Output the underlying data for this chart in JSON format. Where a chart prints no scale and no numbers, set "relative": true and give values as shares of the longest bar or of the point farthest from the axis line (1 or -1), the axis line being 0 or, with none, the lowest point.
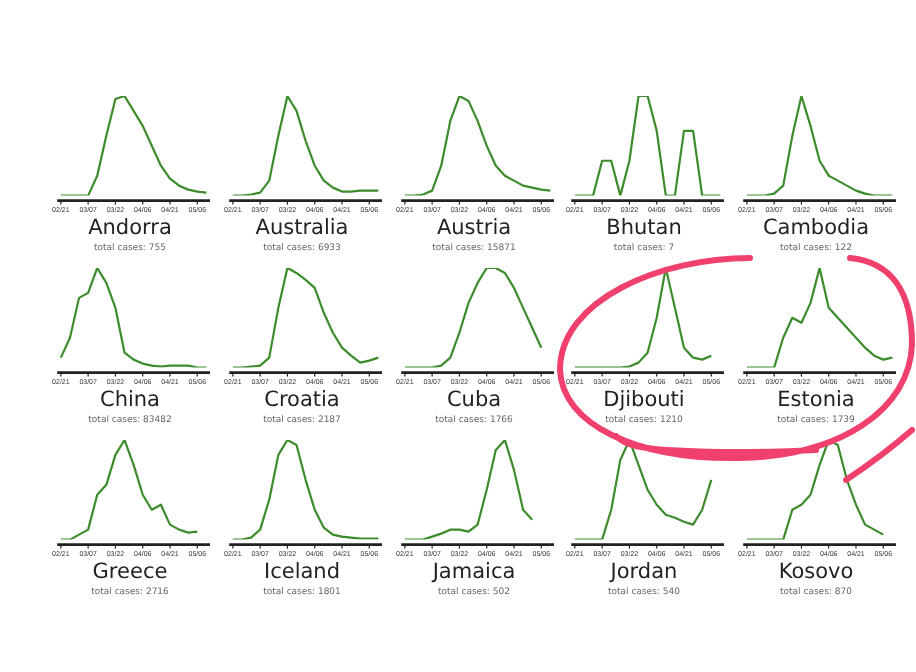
{
  "chart_data": [
    {
      "type": "line",
      "title": "Andorra",
      "subtitle": "total cases: 755",
      "relative": true,
      "x": [
        "--02-21",
        "--02-26",
        "--03-02",
        "--03-07",
        "--03-12",
        "--03-17",
        "--03-22",
        "--03-27",
        "--04-01",
        "--04-06",
        "--04-11",
        "--04-16",
        "--04-21",
        "--04-26",
        "--05-01",
        "--05-06",
        "--05-11"
      ],
      "xlim": [
        "--02-19",
        "--05-13"
      ],
      "xticks": [
        {
          "value": "--02-21",
          "label": "02/21"
        },
        {
          "value": "--03-07",
          "label": "03/07"
        },
        {
          "value": "--03-22",
          "label": "03/22"
        },
        {
          "value": "--04-06",
          "label": "04/06"
        },
        {
          "value": "--04-21",
          "label": "04/21"
        },
        {
          "value": "--05-06",
          "label": "05/06"
        }
      ],
      "grid": false,
      "legend": false,
      "series": [
        {
          "color": "#3c8c2c",
          "values": [
            0,
            0,
            0,
            0,
            0.2,
            0.6,
            0.97,
            1,
            0.85,
            0.7,
            0.5,
            0.3,
            0.17,
            0.1,
            0.06,
            0.04,
            0.03
          ]
        }
      ]
    },
    {
      "type": "line",
      "title": "Australia",
      "subtitle": "total cases: 6933",
      "relative": true,
      "x": [
        "--02-21",
        "--02-26",
        "--03-02",
        "--03-07",
        "--03-12",
        "--03-17",
        "--03-22",
        "--03-27",
        "--04-01",
        "--04-06",
        "--04-11",
        "--04-16",
        "--04-21",
        "--04-26",
        "--05-01",
        "--05-06",
        "--05-11"
      ],
      "xlim": [
        "--02-19",
        "--05-13"
      ],
      "xticks": [
        {
          "value": "--02-21",
          "label": "02/21"
        },
        {
          "value": "--03-07",
          "label": "03/07"
        },
        {
          "value": "--03-22",
          "label": "03/22"
        },
        {
          "value": "--04-06",
          "label": "04/06"
        },
        {
          "value": "--04-21",
          "label": "04/21"
        },
        {
          "value": "--05-06",
          "label": "05/06"
        }
      ],
      "grid": false,
      "legend": false,
      "series": [
        {
          "color": "#3c8c2c",
          "values": [
            0,
            0,
            0.01,
            0.03,
            0.15,
            0.6,
            1,
            0.85,
            0.55,
            0.3,
            0.15,
            0.08,
            0.04,
            0.04,
            0.05,
            0.05,
            0.05
          ]
        }
      ]
    },
    {
      "type": "line",
      "title": "Austria",
      "subtitle": "total cases: 15871",
      "relative": true,
      "x": [
        "--02-21",
        "--02-26",
        "--03-02",
        "--03-07",
        "--03-12",
        "--03-17",
        "--03-22",
        "--03-27",
        "--04-01",
        "--04-06",
        "--04-11",
        "--04-16",
        "--04-21",
        "--04-26",
        "--05-01",
        "--05-06",
        "--05-11"
      ],
      "xlim": [
        "--02-19",
        "--05-13"
      ],
      "xticks": [
        {
          "value": "--02-21",
          "label": "02/21"
        },
        {
          "value": "--03-07",
          "label": "03/07"
        },
        {
          "value": "--03-22",
          "label": "03/22"
        },
        {
          "value": "--04-06",
          "label": "04/06"
        },
        {
          "value": "--04-21",
          "label": "04/21"
        },
        {
          "value": "--05-06",
          "label": "05/06"
        }
      ],
      "grid": false,
      "legend": false,
      "series": [
        {
          "color": "#3c8c2c",
          "values": [
            0,
            0,
            0.01,
            0.05,
            0.3,
            0.75,
            1,
            0.95,
            0.75,
            0.5,
            0.3,
            0.2,
            0.15,
            0.1,
            0.08,
            0.06,
            0.05
          ]
        }
      ]
    },
    {
      "type": "line",
      "title": "Bhutan",
      "subtitle": "total cases: 7",
      "relative": true,
      "x": [
        "--02-21",
        "--02-26",
        "--03-02",
        "--03-07",
        "--03-12",
        "--03-17",
        "--03-22",
        "--03-27",
        "--04-01",
        "--04-06",
        "--04-11",
        "--04-16",
        "--04-21",
        "--04-26",
        "--05-01",
        "--05-06",
        "--05-11"
      ],
      "xlim": [
        "--02-19",
        "--05-13"
      ],
      "xticks": [
        {
          "value": "--02-21",
          "label": "02/21"
        },
        {
          "value": "--03-07",
          "label": "03/07"
        },
        {
          "value": "--03-22",
          "label": "03/22"
        },
        {
          "value": "--04-06",
          "label": "04/06"
        },
        {
          "value": "--04-21",
          "label": "04/21"
        },
        {
          "value": "--05-06",
          "label": "05/06"
        }
      ],
      "grid": false,
      "legend": false,
      "series": [
        {
          "color": "#3c8c2c",
          "values": [
            0,
            0,
            0,
            0.35,
            0.35,
            0,
            0.35,
            1,
            1,
            0.65,
            0,
            0,
            0.65,
            0.65,
            0,
            0,
            0
          ]
        }
      ]
    },
    {
      "type": "line",
      "title": "Cambodia",
      "subtitle": "total cases: 122",
      "relative": true,
      "x": [
        "--02-21",
        "--02-26",
        "--03-02",
        "--03-07",
        "--03-12",
        "--03-17",
        "--03-22",
        "--03-27",
        "--04-01",
        "--04-06",
        "--04-11",
        "--04-16",
        "--04-21",
        "--04-26",
        "--05-01",
        "--05-06",
        "--05-11"
      ],
      "xlim": [
        "--02-19",
        "--05-13"
      ],
      "xticks": [
        {
          "value": "--02-21",
          "label": "02/21"
        },
        {
          "value": "--03-07",
          "label": "03/07"
        },
        {
          "value": "--03-22",
          "label": "03/22"
        },
        {
          "value": "--04-06",
          "label": "04/06"
        },
        {
          "value": "--04-21",
          "label": "04/21"
        },
        {
          "value": "--05-06",
          "label": "05/06"
        }
      ],
      "grid": false,
      "legend": false,
      "series": [
        {
          "color": "#3c8c2c",
          "values": [
            0,
            0,
            0,
            0.02,
            0.1,
            0.6,
            1,
            0.7,
            0.35,
            0.2,
            0.15,
            0.1,
            0.05,
            0.02,
            0,
            0,
            0
          ]
        }
      ]
    },
    {
      "type": "line",
      "title": "China",
      "subtitle": "total cases: 83482",
      "relative": true,
      "x": [
        "--02-21",
        "--02-26",
        "--03-02",
        "--03-07",
        "--03-12",
        "--03-17",
        "--03-22",
        "--03-27",
        "--04-01",
        "--04-06",
        "--04-11",
        "--04-16",
        "--04-21",
        "--04-26",
        "--05-01",
        "--05-06",
        "--05-11"
      ],
      "xlim": [
        "--02-19",
        "--05-13"
      ],
      "xticks": [
        {
          "value": "--02-21",
          "label": "02/21"
        },
        {
          "value": "--03-07",
          "label": "03/07"
        },
        {
          "value": "--03-22",
          "label": "03/22"
        },
        {
          "value": "--04-06",
          "label": "04/06"
        },
        {
          "value": "--04-21",
          "label": "04/21"
        },
        {
          "value": "--05-06",
          "label": "05/06"
        }
      ],
      "grid": false,
      "legend": false,
      "series": [
        {
          "color": "#3c8c2c",
          "values": [
            0.1,
            0.3,
            0.7,
            0.75,
            1,
            0.85,
            0.6,
            0.15,
            0.08,
            0.04,
            0.02,
            0.01,
            0.02,
            0.02,
            0.02,
            0,
            0
          ]
        }
      ]
    },
    {
      "type": "line",
      "title": "Croatia",
      "subtitle": "total cases: 2187",
      "relative": true,
      "x": [
        "--02-21",
        "--02-26",
        "--03-02",
        "--03-07",
        "--03-12",
        "--03-17",
        "--03-22",
        "--03-27",
        "--04-01",
        "--04-06",
        "--04-11",
        "--04-16",
        "--04-21",
        "--04-26",
        "--05-01",
        "--05-06",
        "--05-11"
      ],
      "xlim": [
        "--02-19",
        "--05-13"
      ],
      "xticks": [
        {
          "value": "--02-21",
          "label": "02/21"
        },
        {
          "value": "--03-07",
          "label": "03/07"
        },
        {
          "value": "--03-22",
          "label": "03/22"
        },
        {
          "value": "--04-06",
          "label": "04/06"
        },
        {
          "value": "--04-21",
          "label": "04/21"
        },
        {
          "value": "--05-06",
          "label": "05/06"
        }
      ],
      "grid": false,
      "legend": false,
      "series": [
        {
          "color": "#3c8c2c",
          "values": [
            0,
            0,
            0.01,
            0.02,
            0.1,
            0.6,
            1,
            0.95,
            0.88,
            0.8,
            0.55,
            0.35,
            0.2,
            0.12,
            0.05,
            0.07,
            0.1
          ]
        }
      ]
    },
    {
      "type": "line",
      "title": "Cuba",
      "subtitle": "total cases: 1766",
      "relative": true,
      "x": [
        "--02-21",
        "--02-26",
        "--03-02",
        "--03-07",
        "--03-12",
        "--03-17",
        "--03-22",
        "--03-27",
        "--04-01",
        "--04-06",
        "--04-11",
        "--04-16",
        "--04-21",
        "--04-26",
        "--05-01",
        "--05-06"
      ],
      "xlim": [
        "--02-19",
        "--05-13"
      ],
      "xticks": [
        {
          "value": "--02-21",
          "label": "02/21"
        },
        {
          "value": "--03-07",
          "label": "03/07"
        },
        {
          "value": "--03-22",
          "label": "03/22"
        },
        {
          "value": "--04-06",
          "label": "04/06"
        },
        {
          "value": "--04-21",
          "label": "04/21"
        },
        {
          "value": "--05-06",
          "label": "05/06"
        }
      ],
      "grid": false,
      "legend": false,
      "series": [
        {
          "color": "#3c8c2c",
          "values": [
            0,
            0,
            0,
            0,
            0.02,
            0.1,
            0.35,
            0.65,
            0.85,
            1,
            1,
            0.95,
            0.8,
            0.6,
            0.4,
            0.2
          ]
        }
      ]
    },
    {
      "type": "line",
      "title": "Djibouti",
      "subtitle": "total cases: 1210",
      "relative": true,
      "x": [
        "--02-21",
        "--02-26",
        "--03-02",
        "--03-07",
        "--03-12",
        "--03-17",
        "--03-22",
        "--03-27",
        "--04-01",
        "--04-06",
        "--04-11",
        "--04-16",
        "--04-21",
        "--04-26",
        "--05-01",
        "--05-06"
      ],
      "xlim": [
        "--02-19",
        "--05-13"
      ],
      "xticks": [
        {
          "value": "--02-21",
          "label": "02/21"
        },
        {
          "value": "--03-07",
          "label": "03/07"
        },
        {
          "value": "--03-22",
          "label": "03/22"
        },
        {
          "value": "--04-06",
          "label": "04/06"
        },
        {
          "value": "--04-21",
          "label": "04/21"
        },
        {
          "value": "--05-06",
          "label": "05/06"
        }
      ],
      "grid": false,
      "legend": false,
      "series": [
        {
          "color": "#3c8c2c",
          "values": [
            0,
            0,
            0,
            0,
            0,
            0,
            0.01,
            0.05,
            0.15,
            0.5,
            1,
            0.6,
            0.2,
            0.1,
            0.08,
            0.12
          ]
        }
      ]
    },
    {
      "type": "line",
      "title": "Estonia",
      "subtitle": "total cases: 1739",
      "relative": true,
      "x": [
        "--02-21",
        "--02-26",
        "--03-02",
        "--03-07",
        "--03-12",
        "--03-17",
        "--03-22",
        "--03-27",
        "--04-01",
        "--04-06",
        "--04-11",
        "--04-16",
        "--04-21",
        "--04-26",
        "--05-01",
        "--05-06",
        "--05-11"
      ],
      "xlim": [
        "--02-19",
        "--05-13"
      ],
      "xticks": [
        {
          "value": "--02-21",
          "label": "02/21"
        },
        {
          "value": "--03-07",
          "label": "03/07"
        },
        {
          "value": "--03-22",
          "label": "03/22"
        },
        {
          "value": "--04-06",
          "label": "04/06"
        },
        {
          "value": "--04-21",
          "label": "04/21"
        },
        {
          "value": "--05-06",
          "label": "05/06"
        }
      ],
      "grid": false,
      "legend": false,
      "series": [
        {
          "color": "#3c8c2c",
          "values": [
            0,
            0,
            0,
            0,
            0.3,
            0.5,
            0.45,
            0.65,
            1,
            0.6,
            0.5,
            0.4,
            0.3,
            0.2,
            0.12,
            0.08,
            0.1
          ]
        }
      ]
    },
    {
      "type": "line",
      "title": "Greece",
      "subtitle": "total cases: 2716",
      "relative": true,
      "x": [
        "--02-21",
        "--02-26",
        "--03-02",
        "--03-07",
        "--03-12",
        "--03-17",
        "--03-22",
        "--03-27",
        "--04-01",
        "--04-06",
        "--04-11",
        "--04-16",
        "--04-21",
        "--04-26",
        "--05-01",
        "--05-06"
      ],
      "xlim": [
        "--02-19",
        "--05-13"
      ],
      "xticks": [
        {
          "value": "--02-21",
          "label": "02/21"
        },
        {
          "value": "--03-07",
          "label": "03/07"
        },
        {
          "value": "--03-22",
          "label": "03/22"
        },
        {
          "value": "--04-06",
          "label": "04/06"
        },
        {
          "value": "--04-21",
          "label": "04/21"
        },
        {
          "value": "--05-06",
          "label": "05/06"
        }
      ],
      "grid": false,
      "legend": false,
      "series": [
        {
          "color": "#3c8c2c",
          "values": [
            0,
            0,
            0.05,
            0.1,
            0.45,
            0.55,
            0.85,
            1,
            0.75,
            0.45,
            0.3,
            0.35,
            0.15,
            0.1,
            0.07,
            0.08
          ]
        }
      ]
    },
    {
      "type": "line",
      "title": "Iceland",
      "subtitle": "total cases: 1801",
      "relative": true,
      "x": [
        "--02-21",
        "--02-26",
        "--03-02",
        "--03-07",
        "--03-12",
        "--03-17",
        "--03-22",
        "--03-27",
        "--04-01",
        "--04-06",
        "--04-11",
        "--04-16",
        "--04-21",
        "--04-26",
        "--05-01",
        "--05-06",
        "--05-11"
      ],
      "xlim": [
        "--02-19",
        "--05-13"
      ],
      "xticks": [
        {
          "value": "--02-21",
          "label": "02/21"
        },
        {
          "value": "--03-07",
          "label": "03/07"
        },
        {
          "value": "--03-22",
          "label": "03/22"
        },
        {
          "value": "--04-06",
          "label": "04/06"
        },
        {
          "value": "--04-21",
          "label": "04/21"
        },
        {
          "value": "--05-06",
          "label": "05/06"
        }
      ],
      "grid": false,
      "legend": false,
      "series": [
        {
          "color": "#3c8c2c",
          "values": [
            0,
            0,
            0.02,
            0.1,
            0.4,
            0.85,
            1,
            0.95,
            0.6,
            0.3,
            0.12,
            0.05,
            0.03,
            0.02,
            0.01,
            0.01,
            0.01
          ]
        }
      ]
    },
    {
      "type": "line",
      "title": "Jamaica",
      "subtitle": "total cases: 502",
      "relative": true,
      "x": [
        "--02-21",
        "--02-26",
        "--03-02",
        "--03-07",
        "--03-12",
        "--03-17",
        "--03-22",
        "--03-27",
        "--04-01",
        "--04-06",
        "--04-11",
        "--04-16",
        "--04-21",
        "--04-26",
        "--05-01"
      ],
      "xlim": [
        "--02-19",
        "--05-13"
      ],
      "xticks": [
        {
          "value": "--02-21",
          "label": "02/21"
        },
        {
          "value": "--03-07",
          "label": "03/07"
        },
        {
          "value": "--03-22",
          "label": "03/22"
        },
        {
          "value": "--04-06",
          "label": "04/06"
        },
        {
          "value": "--04-21",
          "label": "04/21"
        },
        {
          "value": "--05-06",
          "label": "05/06"
        }
      ],
      "grid": false,
      "legend": false,
      "series": [
        {
          "color": "#3c8c2c",
          "values": [
            0,
            0,
            0,
            0.03,
            0.06,
            0.1,
            0.1,
            0.08,
            0.15,
            0.5,
            0.9,
            1,
            0.7,
            0.3,
            0.2
          ]
        }
      ]
    },
    {
      "type": "line",
      "title": "Jordan",
      "subtitle": "total cases: 540",
      "relative": true,
      "x": [
        "--02-21",
        "--02-26",
        "--03-02",
        "--03-07",
        "--03-12",
        "--03-17",
        "--03-22",
        "--03-27",
        "--04-01",
        "--04-06",
        "--04-11",
        "--04-16",
        "--04-21",
        "--04-26",
        "--05-01",
        "--05-06"
      ],
      "xlim": [
        "--02-19",
        "--05-13"
      ],
      "xticks": [
        {
          "value": "--02-21",
          "label": "02/21"
        },
        {
          "value": "--03-07",
          "label": "03/07"
        },
        {
          "value": "--03-22",
          "label": "03/22"
        },
        {
          "value": "--04-06",
          "label": "04/06"
        },
        {
          "value": "--04-21",
          "label": "04/21"
        },
        {
          "value": "--05-06",
          "label": "05/06"
        }
      ],
      "grid": false,
      "legend": false,
      "series": [
        {
          "color": "#3c8c2c",
          "values": [
            0,
            0,
            0,
            0,
            0.3,
            0.8,
            1,
            0.75,
            0.5,
            0.35,
            0.25,
            0.22,
            0.18,
            0.15,
            0.3,
            0.6
          ]
        }
      ]
    },
    {
      "type": "line",
      "title": "Kosovo",
      "subtitle": "total cases: 870",
      "relative": true,
      "x": [
        "--02-21",
        "--02-26",
        "--03-02",
        "--03-07",
        "--03-12",
        "--03-17",
        "--03-22",
        "--03-27",
        "--04-01",
        "--04-06",
        "--04-11",
        "--04-16",
        "--04-21",
        "--04-26",
        "--05-01",
        "--05-06"
      ],
      "xlim": [
        "--02-19",
        "--05-13"
      ],
      "xticks": [
        {
          "value": "--02-21",
          "label": "02/21"
        },
        {
          "value": "--03-07",
          "label": "03/07"
        },
        {
          "value": "--03-22",
          "label": "03/22"
        },
        {
          "value": "--04-06",
          "label": "04/06"
        },
        {
          "value": "--04-21",
          "label": "04/21"
        },
        {
          "value": "--05-06",
          "label": "05/06"
        }
      ],
      "grid": false,
      "legend": false,
      "series": [
        {
          "color": "#3c8c2c",
          "values": [
            0,
            0,
            0,
            0,
            0,
            0.3,
            0.35,
            0.45,
            0.75,
            1,
            0.95,
            0.6,
            0.35,
            0.15,
            0.1,
            0.05
          ]
        }
      ]
    }
  ]
}
